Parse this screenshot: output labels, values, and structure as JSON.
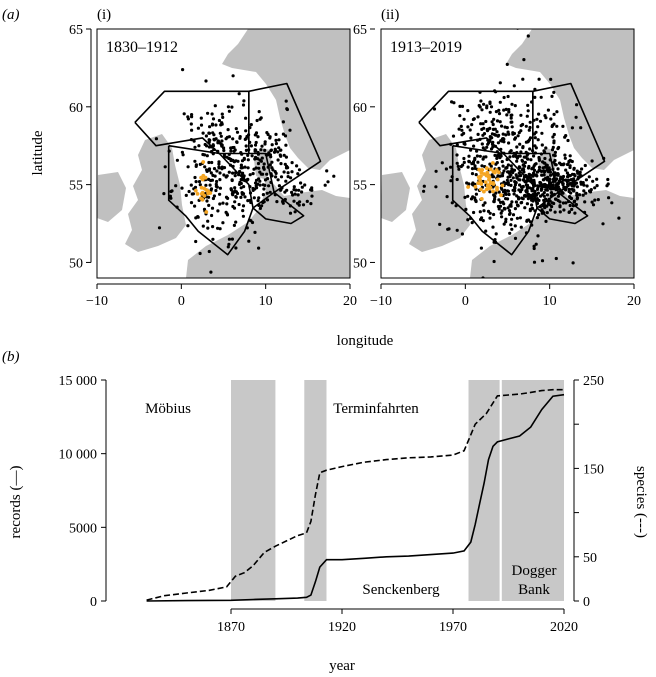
{
  "panel_a": {
    "label": "(a)",
    "map_i": {
      "sublabel": "(i)",
      "period": "1830–1912"
    },
    "map_ii": {
      "sublabel": "(ii)",
      "period": "1913–2019"
    },
    "xlabel": "longitude",
    "ylabel": "latitude"
  },
  "panel_b": {
    "label": "(b)",
    "xlabel": "year",
    "ylabel_left": "records (—)",
    "ylabel_right": "species (---)",
    "shade_labels": [
      "Möbius",
      "Terminfahrten",
      "Senckenberg",
      "Dogger",
      "Bank"
    ]
  },
  "colors": {
    "land": "#c0c0c0",
    "points": "#000000",
    "highlight": "#f5a623",
    "shade": "#c8c8c8"
  },
  "chart_data": [
    {
      "type": "scatter",
      "title": "1830–1912",
      "xlabel": "longitude",
      "ylabel": "latitude",
      "xlim": [
        -10,
        20
      ],
      "ylim": [
        49,
        65
      ],
      "xticks": [
        -10,
        0,
        10,
        20
      ],
      "yticks": [
        50,
        55,
        60,
        65
      ],
      "xtick_labels": [
        "−10",
        "0",
        "10",
        "20"
      ],
      "ytick_labels": [
        "50",
        "55",
        "60",
        "65"
      ],
      "clusters": [
        {
          "lon": 5.5,
          "lat": 56.0,
          "sd_lon": 3.0,
          "sd_lat": 2.2,
          "n": 380
        },
        {
          "lon": 10.5,
          "lat": 57.2,
          "sd_lon": 1.6,
          "sd_lat": 1.0,
          "n": 60
        },
        {
          "lon": 12.5,
          "lat": 55.0,
          "sd_lon": 2.0,
          "sd_lat": 0.8,
          "n": 60
        }
      ],
      "highlight_cluster": {
        "lon": 2.5,
        "lat": 54.6,
        "sd_lon": 0.4,
        "sd_lat": 0.6,
        "n": 20
      },
      "region_outlines": [
        [
          [
            -5.5,
            59.0
          ],
          [
            -2.0,
            61.0
          ],
          [
            8.0,
            61.0
          ],
          [
            8.0,
            57.0
          ],
          [
            4.5,
            57.0
          ],
          [
            2.5,
            58.0
          ],
          [
            -3.0,
            57.5
          ],
          [
            -5.5,
            59.0
          ]
        ],
        [
          [
            8.0,
            61.0
          ],
          [
            12.5,
            61.5
          ],
          [
            16.5,
            56.5
          ],
          [
            11.0,
            54.5
          ],
          [
            10.0,
            57.0
          ],
          [
            8.0,
            57.0
          ],
          [
            8.0,
            61.0
          ]
        ],
        [
          [
            -1.5,
            57.5
          ],
          [
            4.5,
            57.0
          ],
          [
            8.0,
            55.0
          ],
          [
            8.5,
            53.5
          ],
          [
            7.5,
            52.0
          ],
          [
            5.5,
            50.5
          ],
          [
            2.0,
            52.0
          ],
          [
            0.5,
            53.0
          ],
          [
            -1.5,
            54.0
          ],
          [
            -1.5,
            57.5
          ]
        ],
        [
          [
            8.5,
            53.5
          ],
          [
            11.0,
            54.5
          ],
          [
            14.5,
            53.0
          ],
          [
            13.0,
            52.5
          ],
          [
            10.0,
            52.8
          ],
          [
            8.5,
            53.5
          ]
        ]
      ]
    },
    {
      "type": "scatter",
      "title": "1913–2019",
      "xlabel": "longitude",
      "ylabel": "latitude",
      "xlim": [
        -10,
        20
      ],
      "ylim": [
        49,
        65
      ],
      "xticks": [
        -10,
        0,
        10,
        20
      ],
      "yticks": [
        50,
        55,
        60,
        65
      ],
      "xtick_labels": [
        "−10",
        "0",
        "10",
        "20"
      ],
      "ytick_labels": [
        "50",
        "55",
        "60",
        "65"
      ],
      "clusters": [
        {
          "lon": 4.5,
          "lat": 56.5,
          "sd_lon": 3.5,
          "sd_lat": 2.5,
          "n": 520
        },
        {
          "lon": 9.0,
          "lat": 54.8,
          "sd_lon": 2.5,
          "sd_lat": 0.8,
          "n": 260
        },
        {
          "lon": 12.0,
          "lat": 55.0,
          "sd_lon": 2.2,
          "sd_lat": 0.9,
          "n": 120
        }
      ],
      "highlight_cluster": {
        "lon": 2.5,
        "lat": 55.3,
        "sd_lon": 0.8,
        "sd_lat": 0.5,
        "n": 45
      },
      "region_outlines": [
        [
          [
            -5.5,
            59.0
          ],
          [
            -2.0,
            61.0
          ],
          [
            8.0,
            61.0
          ],
          [
            8.0,
            57.0
          ],
          [
            4.5,
            57.0
          ],
          [
            2.5,
            58.0
          ],
          [
            -3.0,
            57.5
          ],
          [
            -5.5,
            59.0
          ]
        ],
        [
          [
            8.0,
            61.0
          ],
          [
            12.5,
            61.5
          ],
          [
            16.5,
            56.5
          ],
          [
            11.0,
            54.5
          ],
          [
            10.0,
            57.0
          ],
          [
            8.0,
            57.0
          ],
          [
            8.0,
            61.0
          ]
        ],
        [
          [
            -1.5,
            57.5
          ],
          [
            4.5,
            57.0
          ],
          [
            8.0,
            55.0
          ],
          [
            8.5,
            53.5
          ],
          [
            7.5,
            52.0
          ],
          [
            5.5,
            50.5
          ],
          [
            2.0,
            52.0
          ],
          [
            0.5,
            53.0
          ],
          [
            -1.5,
            54.0
          ],
          [
            -1.5,
            57.5
          ]
        ],
        [
          [
            8.5,
            53.5
          ],
          [
            11.0,
            54.5
          ],
          [
            14.5,
            53.0
          ],
          [
            13.0,
            52.5
          ],
          [
            10.0,
            52.8
          ],
          [
            8.5,
            53.5
          ]
        ]
      ]
    },
    {
      "type": "line",
      "xlabel": "year",
      "ylabel": "records (—)",
      "y2label": "species (---)",
      "xlim": [
        1820,
        2020
      ],
      "ylim": [
        0,
        15000
      ],
      "y2lim": [
        0,
        250
      ],
      "xticks": [
        1870,
        1920,
        1970,
        2020
      ],
      "yticks": [
        0,
        5000,
        10000,
        15000
      ],
      "ytick_labels": [
        "0",
        "5000",
        "10 000",
        "15 000"
      ],
      "y2ticks": [
        0,
        50,
        100,
        150,
        200,
        250
      ],
      "y2tick_labels": [
        "0",
        "50",
        "",
        "150",
        "",
        "250"
      ],
      "shaded_periods": [
        {
          "name": "Möbius",
          "start": 1870,
          "end": 1890
        },
        {
          "name": "Terminfahrten",
          "start": 1903,
          "end": 1913
        },
        {
          "name": "Senckenberg",
          "start": 1977,
          "end": 1991
        },
        {
          "name": "Dogger Bank",
          "start": 1992,
          "end": 2020
        }
      ],
      "series": [
        {
          "name": "records (—)",
          "style": "solid",
          "x": [
            1832,
            1850,
            1860,
            1870,
            1880,
            1890,
            1900,
            1904,
            1906,
            1908,
            1910,
            1913,
            1920,
            1930,
            1940,
            1950,
            1960,
            1970,
            1975,
            1978,
            1980,
            1982,
            1984,
            1986,
            1988,
            1990,
            1995,
            2000,
            2005,
            2010,
            2015,
            2020
          ],
          "y": [
            0,
            30,
            40,
            50,
            100,
            150,
            200,
            250,
            400,
            1300,
            2300,
            2800,
            2800,
            2900,
            3000,
            3050,
            3150,
            3250,
            3400,
            4000,
            5200,
            6600,
            8000,
            9600,
            10500,
            10800,
            11000,
            11200,
            11800,
            13000,
            13900,
            14000
          ]
        },
        {
          "name": "species (---)",
          "style": "dashed",
          "axis": "right",
          "x": [
            1832,
            1840,
            1850,
            1860,
            1868,
            1872,
            1876,
            1880,
            1885,
            1890,
            1895,
            1900,
            1904,
            1906,
            1908,
            1910,
            1913,
            1920,
            1930,
            1940,
            1950,
            1960,
            1970,
            1975,
            1978,
            1980,
            1985,
            1990,
            1995,
            2000,
            2005,
            2010,
            2015,
            2020
          ],
          "y": [
            1,
            6,
            9,
            12,
            16,
            28,
            32,
            40,
            55,
            62,
            68,
            74,
            77,
            90,
            120,
            145,
            148,
            152,
            157,
            160,
            162,
            163,
            165,
            170,
            188,
            200,
            212,
            232,
            233,
            234,
            236,
            238,
            239,
            239
          ]
        }
      ]
    }
  ]
}
